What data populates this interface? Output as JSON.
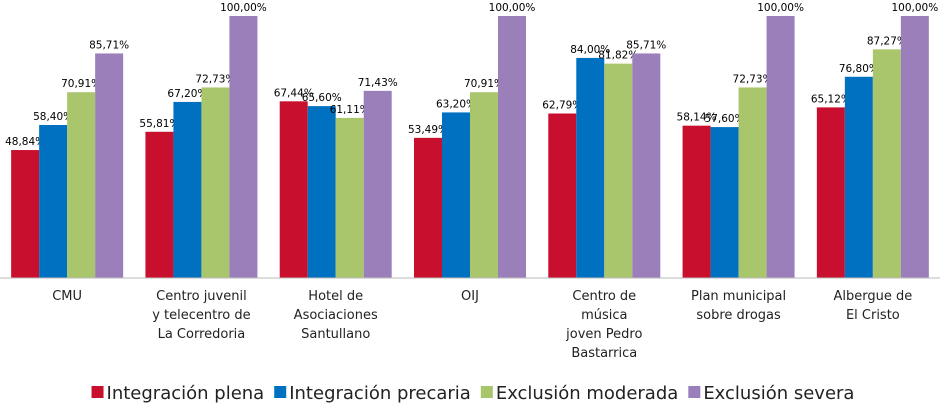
{
  "chart_data": {
    "type": "bar",
    "categories": [
      "CMU",
      "Centro juvenil\ny telecentro de\nLa Corredoria",
      "Hotel de\nAsociaciones\nSantullano",
      "OIJ",
      "Centro de\nmúsica\njoven Pedro\nBastarrica",
      "Plan municipal\nsobre drogas",
      "Albergue de\nEl Cristo"
    ],
    "series": [
      {
        "name": "Integración plena",
        "color": "#c8102e",
        "values": [
          48.84,
          55.81,
          67.44,
          53.49,
          62.79,
          58.14,
          65.12
        ],
        "value_labels": [
          "48,84%",
          "55,81%",
          "67,44%",
          "53,49%",
          "62,79%",
          "58,14%",
          "65,12%"
        ]
      },
      {
        "name": "Integración precaria",
        "color": "#0070c0",
        "values": [
          58.4,
          67.2,
          65.6,
          63.2,
          84.0,
          57.6,
          76.8
        ],
        "value_labels": [
          "58,40%",
          "67,20%",
          "65,60%",
          "63,20%",
          "84,00%",
          "57,60%",
          "76,80%"
        ]
      },
      {
        "name": "Exclusión moderada",
        "color": "#a9c66c",
        "values": [
          70.91,
          72.73,
          61.11,
          70.91,
          81.82,
          72.73,
          87.27
        ],
        "value_labels": [
          "70,91%",
          "72,73%",
          "61,11%",
          "70,91%",
          "81,82%",
          "72,73%",
          "87,27%"
        ]
      },
      {
        "name": "Exclusión severa",
        "color": "#9b7fbb",
        "values": [
          85.71,
          100,
          71.43,
          100,
          85.71,
          100,
          100
        ],
        "value_labels": [
          "85,71%",
          "100,00%",
          "71,43%",
          "100,00%",
          "85,71%",
          "100,00%",
          "100,00%"
        ]
      }
    ],
    "ylim": [
      0,
      100
    ],
    "legend": "bottom"
  }
}
